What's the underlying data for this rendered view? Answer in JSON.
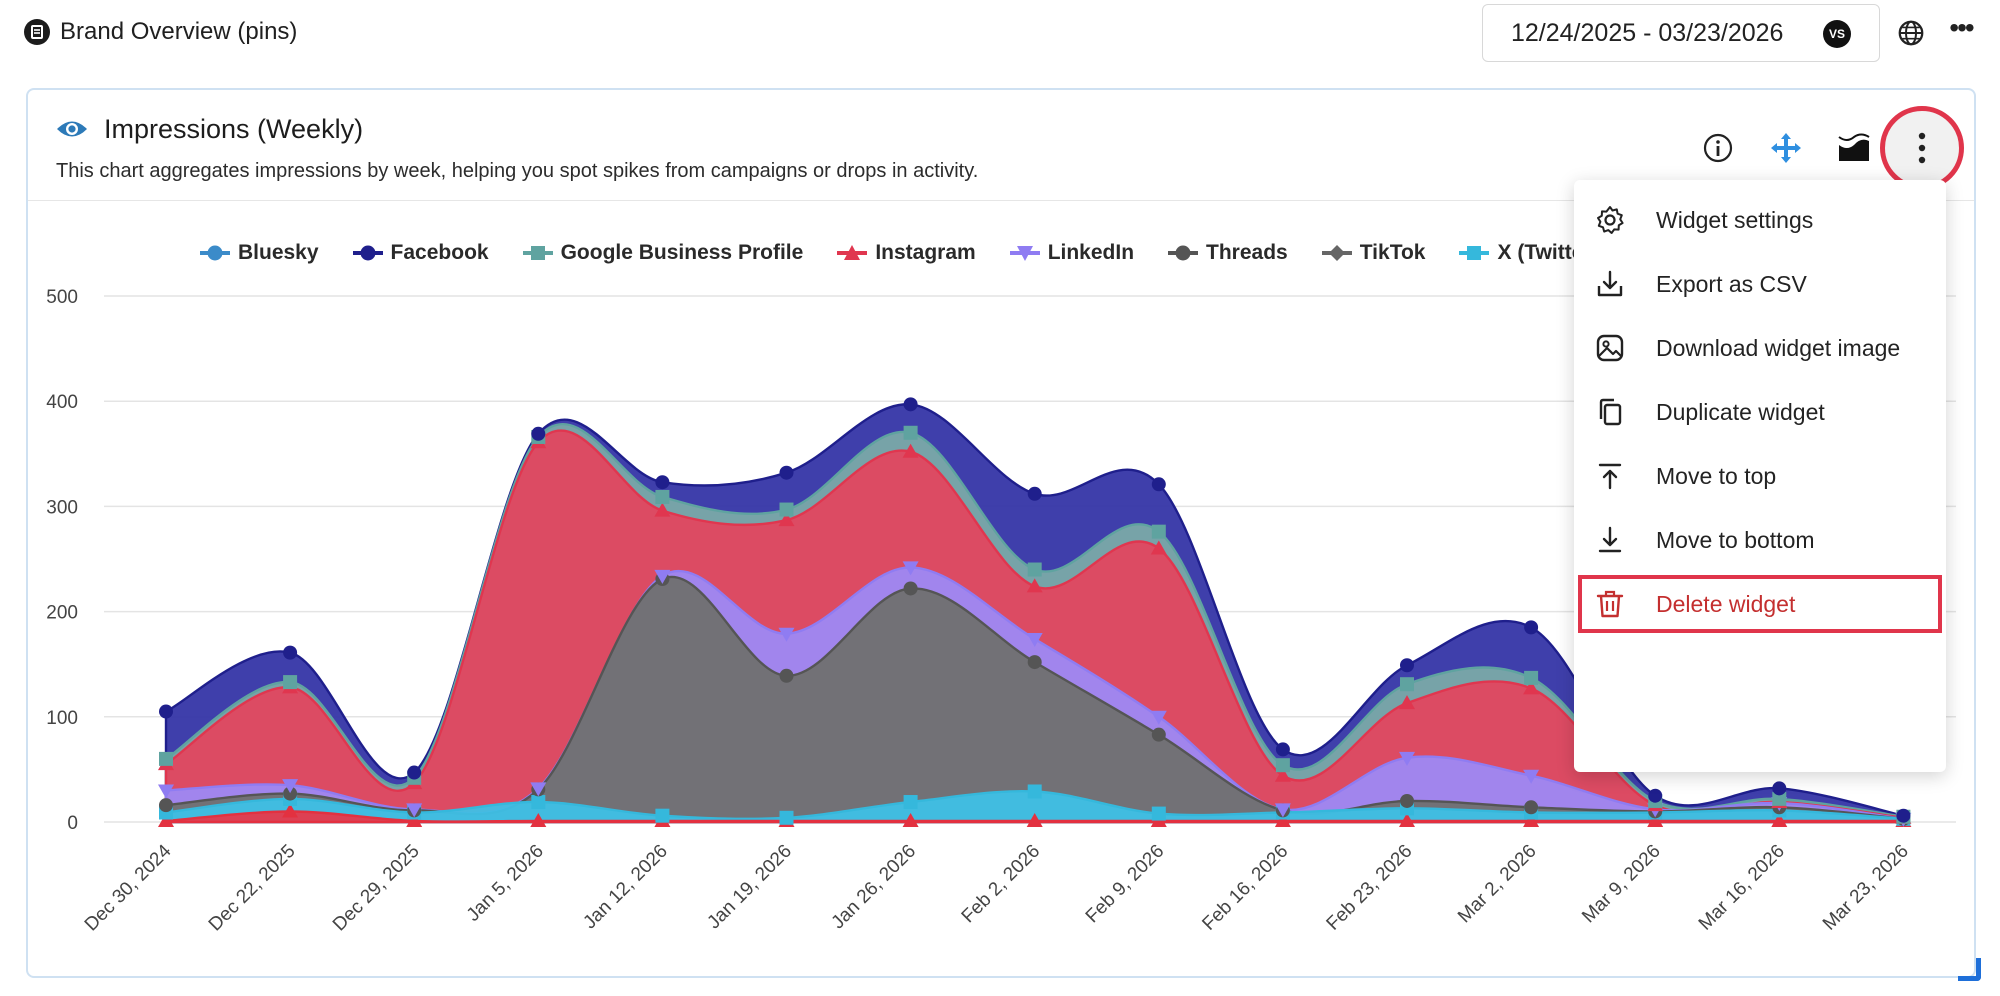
{
  "topbar": {
    "title": "Brand Overview (pins)",
    "date_range": "12/24/2025 - 03/23/2026",
    "user_badge": "VS",
    "icons": [
      "brand-logo-icon",
      "globe-icon",
      "more-horizontal-icon"
    ]
  },
  "widget": {
    "title": "Impressions (Weekly)",
    "description": "This chart aggregates impressions by week, helping you spot spikes from campaigns or drops in activity.",
    "header_icons": [
      "eye-icon",
      "info-icon",
      "move-icon",
      "chart-type-icon",
      "more-vertical-icon"
    ]
  },
  "menu": {
    "items": [
      {
        "label": "Widget settings",
        "icon": "gear-icon"
      },
      {
        "label": "Export as CSV",
        "icon": "download-icon"
      },
      {
        "label": "Download widget image",
        "icon": "image-icon"
      },
      {
        "label": "Duplicate widget",
        "icon": "copy-icon"
      },
      {
        "label": "Move to top",
        "icon": "arrow-up-to-line-icon"
      },
      {
        "label": "Move to bottom",
        "icon": "arrow-down-to-line-icon"
      },
      {
        "label": "Delete widget",
        "icon": "trash-icon",
        "danger": true
      }
    ]
  },
  "chart_data": {
    "type": "area",
    "stacked": true,
    "title": "",
    "xlabel": "",
    "ylabel": "",
    "ylim": [
      0,
      500
    ],
    "yticks": [
      0,
      100,
      200,
      300,
      400,
      500
    ],
    "grid": true,
    "legend_position": "top",
    "categories": [
      "Dec 30, 2024",
      "Dec 22, 2025",
      "Dec 29, 2025",
      "Jan 5, 2026",
      "Jan 12, 2026",
      "Jan 19, 2026",
      "Jan 26, 2026",
      "Feb 2, 2026",
      "Feb 9, 2026",
      "Feb 16, 2026",
      "Feb 23, 2026",
      "Mar 2, 2026",
      "Mar 9, 2026",
      "Mar 16, 2026",
      "Mar 23, 2026"
    ],
    "series": [
      {
        "name": "Bluesky",
        "color": "#3b8bc9",
        "marker": "circle",
        "values": [
          0,
          0,
          0,
          0,
          0,
          0,
          0,
          0,
          0,
          0,
          0,
          0,
          0,
          0,
          0
        ]
      },
      {
        "name": "Facebook",
        "color": "#1f1f8c",
        "marker": "circle",
        "values": [
          45,
          28,
          5,
          3,
          14,
          35,
          27,
          72,
          45,
          15,
          18,
          48,
          5,
          10,
          1
        ]
      },
      {
        "name": "Google Business Profile",
        "color": "#5fa3a0",
        "marker": "square",
        "values": [
          5,
          5,
          5,
          5,
          13,
          10,
          18,
          16,
          16,
          10,
          18,
          10,
          4,
          3,
          1
        ]
      },
      {
        "name": "Instagram",
        "color": "#e0364f",
        "marker": "triangle",
        "values": [
          25,
          93,
          25,
          329,
          62,
          108,
          110,
          50,
          160,
          32,
          52,
          83,
          4,
          1,
          1
        ]
      },
      {
        "name": "LinkedIn",
        "color": "#8f7cf2",
        "marker": "triangle-down",
        "values": [
          14,
          8,
          1,
          1,
          3,
          40,
          20,
          22,
          17,
          1,
          41,
          30,
          2,
          4,
          0
        ]
      },
      {
        "name": "Threads",
        "color": "#555555",
        "marker": "circle",
        "values": [
          7,
          5,
          2,
          12,
          225,
          135,
          203,
          123,
          75,
          2,
          7,
          5,
          1,
          3,
          0
        ]
      },
      {
        "name": "TikTok",
        "color": "#666666",
        "marker": "diamond",
        "values": [
          0,
          0,
          0,
          0,
          0,
          0,
          0,
          0,
          0,
          0,
          0,
          0,
          0,
          0,
          0
        ]
      },
      {
        "name": "X (Twitter)",
        "color": "#35b8dc",
        "marker": "square",
        "values": [
          8,
          12,
          8,
          18,
          5,
          3,
          18,
          28,
          7,
          8,
          12,
          8,
          8,
          10,
          2
        ]
      },
      {
        "name": "",
        "color": "#e33140",
        "marker": "triangle",
        "values": [
          1,
          10,
          1,
          1,
          1,
          1,
          1,
          1,
          1,
          1,
          1,
          1,
          1,
          1,
          1
        ]
      }
    ]
  }
}
